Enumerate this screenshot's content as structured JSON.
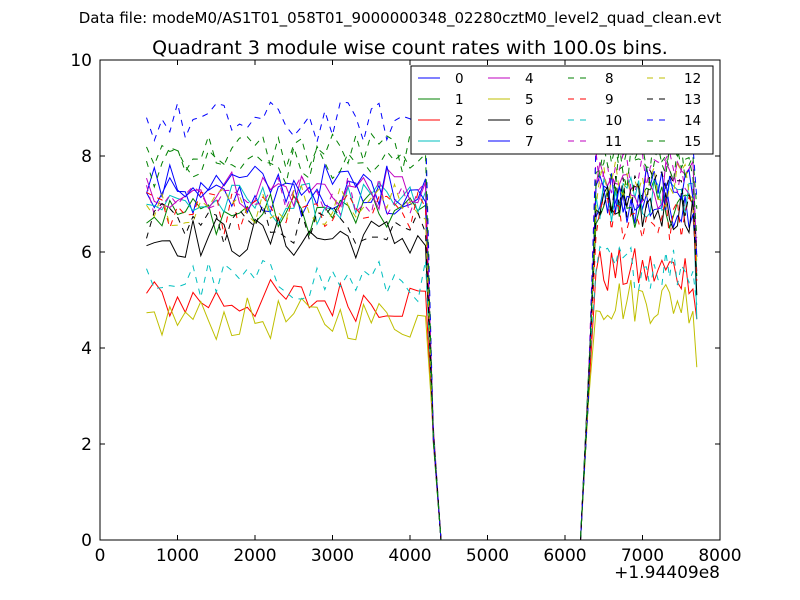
{
  "suptitle": "Data file: modeM0/AS1T01_058T01_9000000348_02280cztM0_level2_quad_clean.evt",
  "chart_data": {
    "type": "line",
    "title": "Quadrant 3 module wise count rates with 100.0s bins.",
    "xlabel": "",
    "ylabel": "",
    "xlim": [
      0,
      8000
    ],
    "ylim": [
      0,
      10
    ],
    "x_offset_label": "+1.94409e8",
    "xticks": [
      0,
      1000,
      2000,
      3000,
      4000,
      5000,
      6000,
      7000,
      8000
    ],
    "yticks": [
      0,
      2,
      4,
      6,
      8,
      10
    ],
    "grid": false,
    "legend_position": "top-right",
    "legend_columns": 4,
    "bin_seconds": 100,
    "series_profile": {
      "pre_gap_x": [
        600,
        4200
      ],
      "gap_x": [
        4400,
        6200
      ],
      "post_gap_x": [
        6400,
        7700
      ],
      "pre_gap_step": 100,
      "post_gap_step": 50,
      "last_point_x": 7700
    },
    "series": [
      {
        "name": "0",
        "color": "#0000ff",
        "style": "solid",
        "mean_before": 7.1,
        "mean_after": 7.0,
        "last": 5.6
      },
      {
        "name": "1",
        "color": "#008000",
        "style": "solid",
        "mean_before": 6.8,
        "mean_after": 7.0,
        "last": 5.5
      },
      {
        "name": "2",
        "color": "#ff0000",
        "style": "solid",
        "mean_before": 5.0,
        "mean_after": 5.6,
        "last": 4.6
      },
      {
        "name": "3",
        "color": "#00bfbf",
        "style": "solid",
        "mean_before": 7.0,
        "mean_after": 7.1,
        "last": 4.6
      },
      {
        "name": "4",
        "color": "#bf00bf",
        "style": "solid",
        "mean_before": 7.3,
        "mean_after": 7.4,
        "last": 5.9
      },
      {
        "name": "5",
        "color": "#bfbf00",
        "style": "solid",
        "mean_before": 4.6,
        "mean_after": 5.0,
        "last": 3.6
      },
      {
        "name": "6",
        "color": "#000000",
        "style": "solid",
        "mean_before": 6.3,
        "mean_after": 6.9,
        "last": 5.1
      },
      {
        "name": "7",
        "color": "#0000ff",
        "style": "solid",
        "mean_before": 7.4,
        "mean_after": 7.3,
        "last": 5.9
      },
      {
        "name": "8",
        "color": "#008000",
        "style": "dashed",
        "mean_before": 8.1,
        "mean_after": 8.0,
        "last": 6.9
      },
      {
        "name": "9",
        "color": "#ff0000",
        "style": "dashed",
        "mean_before": 6.8,
        "mean_after": 6.7,
        "last": 5.4
      },
      {
        "name": "10",
        "color": "#00bfbf",
        "style": "dashed",
        "mean_before": 5.4,
        "mean_after": 5.7,
        "last": 4.9
      },
      {
        "name": "11",
        "color": "#bf00bf",
        "style": "dashed",
        "mean_before": 7.2,
        "mean_after": 7.7,
        "last": 6.1
      },
      {
        "name": "12",
        "color": "#bfbf00",
        "style": "dashed",
        "mean_before": 7.0,
        "mean_after": 7.4,
        "last": 5.8
      },
      {
        "name": "13",
        "color": "#000000",
        "style": "dashed",
        "mean_before": 6.6,
        "mean_after": 7.2,
        "last": 6.0
      },
      {
        "name": "14",
        "color": "#0000ff",
        "style": "dashed",
        "mean_before": 8.7,
        "mean_after": 8.7,
        "last": 7.1
      },
      {
        "name": "15",
        "color": "#008000",
        "style": "dashed",
        "mean_before": 7.8,
        "mean_after": 7.8,
        "last": 6.3
      }
    ]
  }
}
